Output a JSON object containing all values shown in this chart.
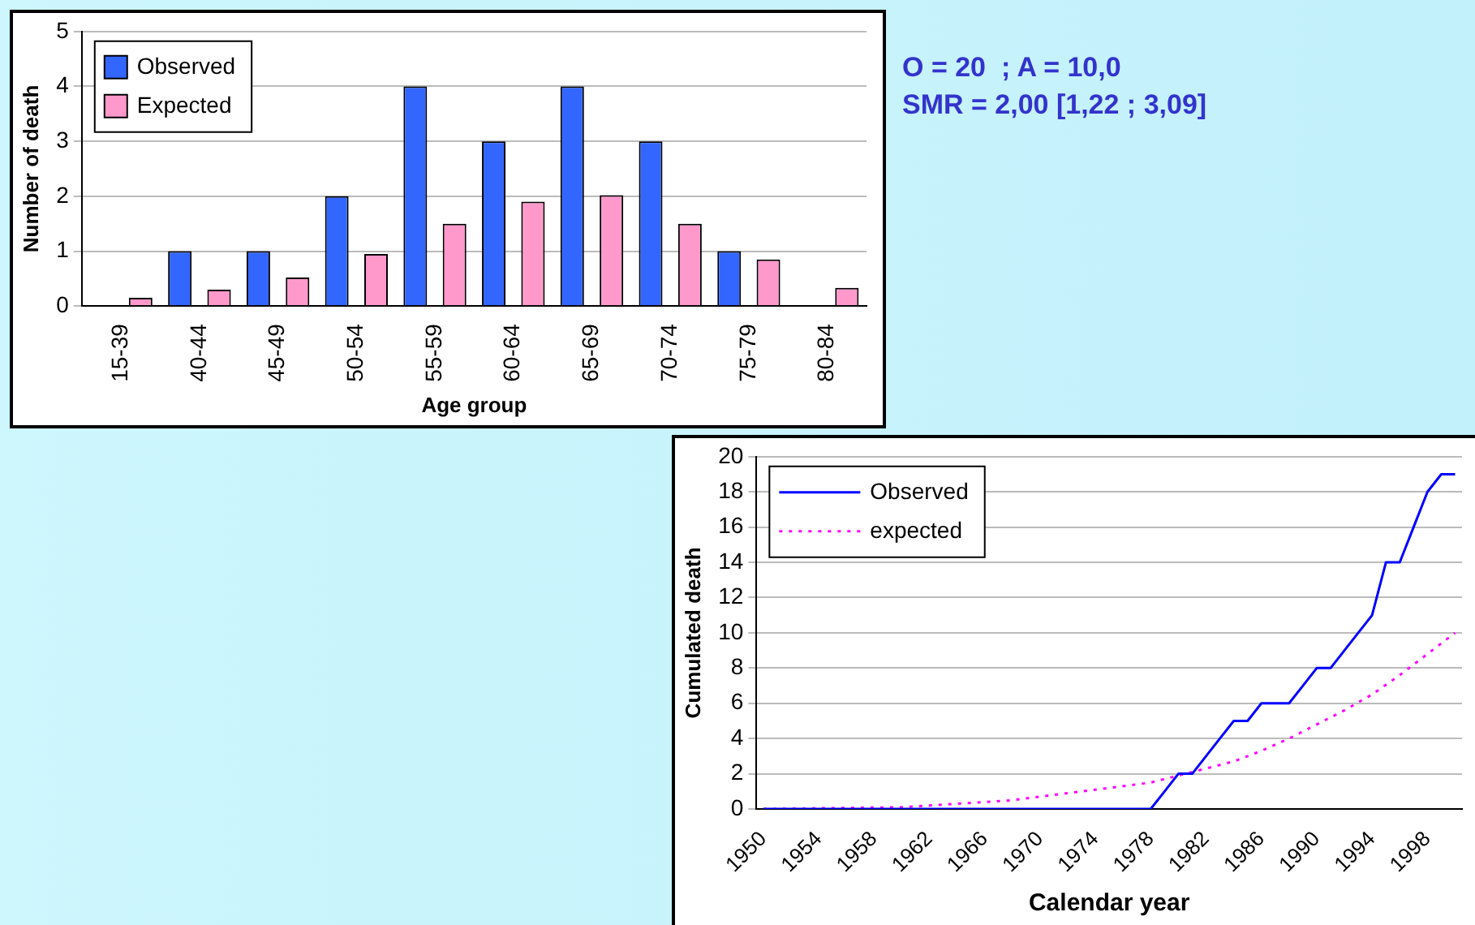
{
  "chart_data": [
    {
      "type": "bar",
      "xlabel": "Age group",
      "ylabel": "Number of death",
      "categories": [
        "15-39",
        "40-44",
        "45-49",
        "50-54",
        "55-59",
        "60-64",
        "65-69",
        "70-74",
        "75-79",
        "80-84"
      ],
      "series": [
        {
          "name": "Observed",
          "color": "#3366ff",
          "values": [
            0,
            1,
            1,
            2,
            4,
            3,
            4,
            3,
            1,
            0
          ]
        },
        {
          "name": "Expected",
          "color": "#ff99cc",
          "values": [
            0.15,
            0.3,
            0.52,
            0.95,
            1.5,
            1.9,
            2.02,
            1.5,
            0.85,
            0.33
          ]
        }
      ],
      "ylim": [
        0,
        5
      ],
      "yticks": [
        0,
        1,
        2,
        3,
        4,
        5
      ],
      "grid": "y",
      "legend": "top left"
    },
    {
      "type": "line",
      "xlabel": "Calendar year",
      "ylabel": "Cumulated death",
      "xlim": [
        1949.5,
        2000.5
      ],
      "xticks": [
        1950,
        1954,
        1958,
        1962,
        1966,
        1970,
        1974,
        1978,
        1982,
        1986,
        1990,
        1994,
        1998
      ],
      "ylim": [
        0,
        20
      ],
      "yticks": [
        0,
        2,
        4,
        6,
        8,
        10,
        12,
        14,
        16,
        18,
        20
      ],
      "grid": "y",
      "legend": "top left",
      "marker": "none",
      "series": [
        {
          "name": "Observed",
          "color": "#0000ff",
          "line_style": "solid",
          "x": [
            1950,
            1978,
            1979,
            1980,
            1981,
            1982,
            1983,
            1984,
            1985,
            1986,
            1987,
            1988,
            1989,
            1990,
            1991,
            1992,
            1993,
            1994,
            1995,
            1996,
            1997,
            1998,
            1999,
            2000
          ],
          "values": [
            0,
            0,
            1,
            2,
            2,
            3,
            4,
            5,
            5,
            6,
            6,
            6,
            7,
            8,
            8,
            9,
            10,
            11,
            14,
            14,
            16,
            18,
            19,
            19
          ]
        },
        {
          "name": "expected",
          "color": "#ff00ff",
          "line_style": "dotted",
          "x": [
            1950,
            1960,
            1962,
            1964,
            1966,
            1968,
            1970,
            1972,
            1974,
            1976,
            1978,
            1980,
            1982,
            1984,
            1986,
            1988,
            1990,
            1992,
            1994,
            1996,
            1998,
            2000
          ],
          "values": [
            0,
            0.1,
            0.2,
            0.3,
            0.4,
            0.5,
            0.7,
            0.9,
            1.1,
            1.3,
            1.5,
            1.9,
            2.3,
            2.7,
            3.3,
            4,
            4.8,
            5.6,
            6.5,
            7.6,
            8.8,
            10
          ]
        }
      ]
    },
    {
      "type": "other",
      "annotations": [
        "O = 20  ; A = 10,0",
        "SMR = 2,00 [1,22 ; 3,09]"
      ]
    }
  ]
}
